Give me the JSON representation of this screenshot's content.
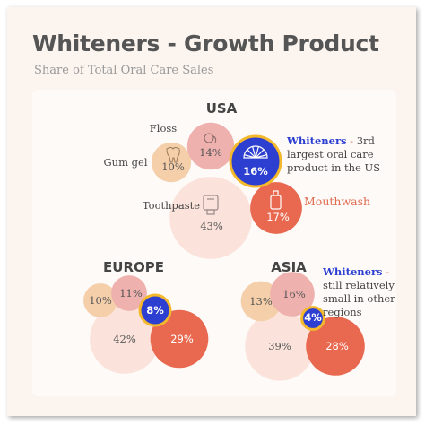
{
  "title": "Whiteners - Growth Product",
  "subtitle": "Share of Total Oral Care Sales",
  "colors": {
    "floss": "#eeb1ae",
    "gum_gel": "#f5cfaa",
    "toothpaste": "#fbe3db",
    "whiteners": "#2c3fd0",
    "whiteners_ring": "#f3b82b",
    "mouthwash": "#e8694f"
  },
  "chart_data": [
    {
      "type": "bubble",
      "region": "USA",
      "items": [
        {
          "category": "Floss",
          "value": 14,
          "label": "14%",
          "icon": "floss-icon"
        },
        {
          "category": "Gum gel",
          "value": 10,
          "label": "10%",
          "icon": "tooth-icon"
        },
        {
          "category": "Whiteners",
          "value": 16,
          "label": "16%",
          "icon": "fan-shade-icon"
        },
        {
          "category": "Toothpaste",
          "value": 43,
          "label": "43%",
          "icon": "toothpaste-tube-icon"
        },
        {
          "category": "Mouthwash",
          "value": 17,
          "label": "17%",
          "icon": "mouthwash-bottle-icon"
        }
      ]
    },
    {
      "type": "bubble",
      "region": "EUROPE",
      "items": [
        {
          "category": "Gum gel",
          "value": 10,
          "label": "10%"
        },
        {
          "category": "Floss",
          "value": 11,
          "label": "11%"
        },
        {
          "category": "Whiteners",
          "value": 8,
          "label": "8%"
        },
        {
          "category": "Toothpaste",
          "value": 42,
          "label": "42%"
        },
        {
          "category": "Mouthwash",
          "value": 29,
          "label": "29%"
        }
      ]
    },
    {
      "type": "bubble",
      "region": "ASIA",
      "items": [
        {
          "category": "Gum gel",
          "value": 13,
          "label": "13%"
        },
        {
          "category": "Floss",
          "value": 16,
          "label": "16%"
        },
        {
          "category": "Whiteners",
          "value": 4,
          "label": "4%"
        },
        {
          "category": "Toothpaste",
          "value": 39,
          "label": "39%"
        },
        {
          "category": "Mouthwash",
          "value": 28,
          "label": "28%"
        }
      ]
    }
  ],
  "annotations": {
    "usa_note": {
      "highlight": "Whiteners",
      "dash": " - ",
      "text": "3rd largest oral care product in the US"
    },
    "asia_note": {
      "highlight": "Whiteners",
      "dash": " - ",
      "text": "still relatively small in other regions"
    },
    "mouthwash_label": "Mouthwash"
  }
}
